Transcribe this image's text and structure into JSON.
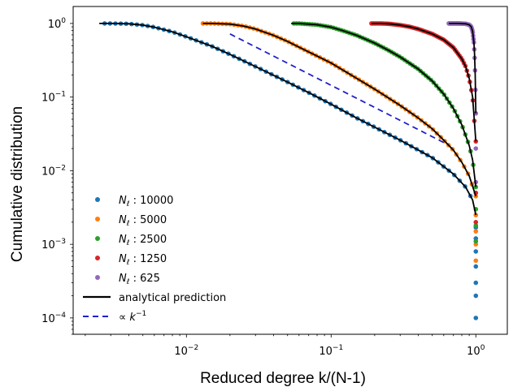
{
  "chart_data": {
    "type": "scatter",
    "title": "",
    "xlabel": "Reduced degree  k/(N-1)",
    "ylabel": "Cumulative distribution",
    "xscale": "log",
    "yscale": "log",
    "xlim": [
      0.00165,
      1.65
    ],
    "ylim": [
      6e-05,
      1.7
    ],
    "x_ticks": [
      {
        "value": 0.01,
        "mant": "10",
        "exp": "−2"
      },
      {
        "value": 0.1,
        "mant": "10",
        "exp": "−1"
      },
      {
        "value": 1,
        "mant": "10",
        "exp": "0"
      }
    ],
    "y_ticks": [
      {
        "value": 1,
        "mant": "10",
        "exp": "0"
      },
      {
        "value": 0.1,
        "mant": "10",
        "exp": "−1"
      },
      {
        "value": 0.01,
        "mant": "10",
        "exp": "−2"
      },
      {
        "value": 0.001,
        "mant": "10",
        "exp": "−3"
      },
      {
        "value": 0.0001,
        "mant": "10",
        "exp": "−4"
      }
    ],
    "grid": false,
    "legend_position": "lower-left",
    "series": [
      {
        "name": "N_ℓ : 10000",
        "label_prefix": "N",
        "label_sub": "ℓ",
        "label_value": "10000",
        "color": "#1f77b4",
        "points": [
          [
            0.0025,
            1.0
          ],
          [
            0.003,
            1.0
          ],
          [
            0.004,
            0.99
          ],
          [
            0.005,
            0.95
          ],
          [
            0.006,
            0.89
          ],
          [
            0.008,
            0.77
          ],
          [
            0.01,
            0.66
          ],
          [
            0.015,
            0.49
          ],
          [
            0.02,
            0.38
          ],
          [
            0.03,
            0.26
          ],
          [
            0.05,
            0.16
          ],
          [
            0.07,
            0.115
          ],
          [
            0.1,
            0.08
          ],
          [
            0.15,
            0.052
          ],
          [
            0.2,
            0.039
          ],
          [
            0.3,
            0.026
          ],
          [
            0.5,
            0.015
          ],
          [
            0.7,
            0.009
          ],
          [
            0.85,
            0.006
          ],
          [
            0.95,
            0.004
          ],
          [
            1.0,
            0.0025
          ]
        ],
        "tail": [
          0.0017,
          0.0012,
          0.0008,
          0.0005,
          0.0003,
          0.0002,
          0.0001
        ]
      },
      {
        "name": "N_ℓ : 5000",
        "label_prefix": "N",
        "label_sub": "ℓ",
        "label_value": "5000",
        "color": "#ff7f0e",
        "points": [
          [
            0.013,
            1.0
          ],
          [
            0.015,
            1.0
          ],
          [
            0.02,
            0.98
          ],
          [
            0.025,
            0.92
          ],
          [
            0.03,
            0.84
          ],
          [
            0.04,
            0.69
          ],
          [
            0.05,
            0.57
          ],
          [
            0.07,
            0.41
          ],
          [
            0.1,
            0.29
          ],
          [
            0.15,
            0.18
          ],
          [
            0.2,
            0.128
          ],
          [
            0.3,
            0.077
          ],
          [
            0.4,
            0.052
          ],
          [
            0.5,
            0.037
          ],
          [
            0.6,
            0.026
          ],
          [
            0.7,
            0.019
          ],
          [
            0.8,
            0.013
          ],
          [
            0.9,
            0.0085
          ],
          [
            1.0,
            0.0045
          ]
        ],
        "tail": [
          0.0025,
          0.0015,
          0.001,
          0.0006
        ]
      },
      {
        "name": "N_ℓ : 2500",
        "label_prefix": "N",
        "label_sub": "ℓ",
        "label_value": "2500",
        "color": "#2ca02c",
        "points": [
          [
            0.053,
            1.0
          ],
          [
            0.06,
            1.0
          ],
          [
            0.08,
            0.96
          ],
          [
            0.1,
            0.89
          ],
          [
            0.12,
            0.8
          ],
          [
            0.15,
            0.69
          ],
          [
            0.2,
            0.54
          ],
          [
            0.25,
            0.43
          ],
          [
            0.3,
            0.35
          ],
          [
            0.4,
            0.24
          ],
          [
            0.5,
            0.165
          ],
          [
            0.6,
            0.11
          ],
          [
            0.7,
            0.07
          ],
          [
            0.8,
            0.042
          ],
          [
            0.9,
            0.022
          ],
          [
            0.95,
            0.014
          ],
          [
            1.0,
            0.006
          ]
        ],
        "tail": [
          0.003,
          0.0018,
          0.0011
        ]
      },
      {
        "name": "N_ℓ : 1250",
        "label_prefix": "N",
        "label_sub": "ℓ",
        "label_value": "1250",
        "color": "#d62728",
        "points": [
          [
            0.19,
            1.0
          ],
          [
            0.22,
            1.0
          ],
          [
            0.25,
            0.99
          ],
          [
            0.3,
            0.95
          ],
          [
            0.35,
            0.9
          ],
          [
            0.4,
            0.84
          ],
          [
            0.5,
            0.72
          ],
          [
            0.6,
            0.6
          ],
          [
            0.7,
            0.47
          ],
          [
            0.8,
            0.33
          ],
          [
            0.85,
            0.26
          ],
          [
            0.9,
            0.18
          ],
          [
            0.95,
            0.1
          ],
          [
            1.0,
            0.025
          ]
        ],
        "tail": [
          0.005,
          0.002
        ]
      },
      {
        "name": "N_ℓ : 625",
        "label_prefix": "N",
        "label_sub": "ℓ",
        "label_value": "625",
        "color": "#9467bd",
        "points": [
          [
            0.65,
            1.0
          ],
          [
            0.75,
            1.0
          ],
          [
            0.85,
            0.99
          ],
          [
            0.9,
            0.96
          ],
          [
            0.93,
            0.9
          ],
          [
            0.95,
            0.78
          ],
          [
            0.97,
            0.55
          ],
          [
            0.98,
            0.38
          ],
          [
            0.99,
            0.2
          ],
          [
            1.0,
            0.06
          ]
        ],
        "tail": [
          0.02,
          0.007
        ]
      }
    ],
    "reference_line": {
      "name": "∝ k⁻¹",
      "label_math": "∝ k",
      "label_exp": "−1",
      "color": "#1f1fcc",
      "style": "dashed",
      "points": [
        [
          0.02,
          0.72
        ],
        [
          0.63,
          0.023
        ]
      ]
    },
    "analytical_prediction": {
      "name": "analytical prediction",
      "color": "#000000"
    }
  }
}
